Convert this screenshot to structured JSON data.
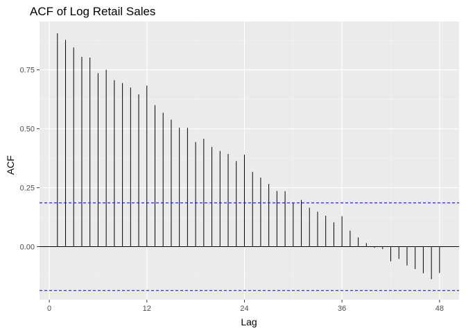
{
  "chart_data": {
    "type": "bar",
    "title": "ACF of Log Retail Sales",
    "xlabel": "Lag",
    "ylabel": "ACF",
    "x_ticks": [
      0,
      12,
      24,
      36,
      48
    ],
    "y_ticks": [
      0.0,
      0.25,
      0.5,
      0.75
    ],
    "y_tick_labels": [
      "0.00",
      "0.25",
      "0.50",
      "0.75"
    ],
    "xlim": [
      -1.2,
      50.4
    ],
    "ylim": [
      -0.225,
      0.955
    ],
    "grid": true,
    "confidence_bounds": [
      0.186,
      -0.186
    ],
    "colors": {
      "panel": "#ebebeb",
      "grid_major": "#ffffff",
      "grid_minor": "#f4f4f4",
      "bars": "#000000",
      "bounds": "#0000cc"
    },
    "lags": [
      1,
      2,
      3,
      4,
      5,
      6,
      7,
      8,
      9,
      10,
      11,
      12,
      13,
      14,
      15,
      16,
      17,
      18,
      19,
      20,
      21,
      22,
      23,
      24,
      25,
      26,
      27,
      28,
      29,
      30,
      31,
      32,
      33,
      34,
      35,
      36,
      37,
      38,
      39,
      40,
      41,
      42,
      43,
      44,
      45,
      46,
      47,
      48
    ],
    "values": [
      0.905,
      0.877,
      0.845,
      0.805,
      0.802,
      0.736,
      0.75,
      0.706,
      0.694,
      0.675,
      0.646,
      0.683,
      0.6,
      0.568,
      0.539,
      0.505,
      0.504,
      0.444,
      0.458,
      0.423,
      0.406,
      0.393,
      0.363,
      0.39,
      0.317,
      0.293,
      0.266,
      0.236,
      0.235,
      0.185,
      0.198,
      0.165,
      0.148,
      0.131,
      0.103,
      0.129,
      0.068,
      0.039,
      0.015,
      -0.005,
      -0.01,
      -0.062,
      -0.052,
      -0.08,
      -0.095,
      -0.113,
      -0.138,
      -0.112
    ]
  }
}
